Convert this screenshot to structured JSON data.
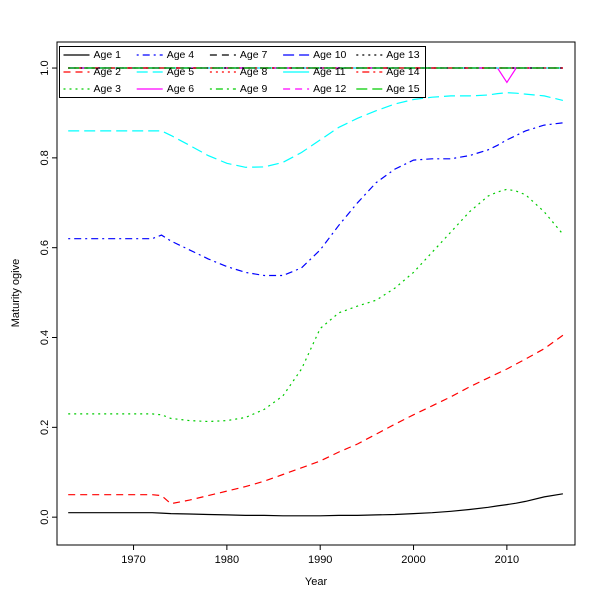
{
  "chart_data": {
    "type": "line",
    "title": "",
    "xlabel": "Year",
    "ylabel": "Maturity ogive",
    "xlim": [
      1961.8,
      2017.3
    ],
    "ylim": [
      -0.062,
      1.058
    ],
    "xticks": [
      1970,
      1980,
      1990,
      2000,
      2010
    ],
    "yticks": [
      0.0,
      0.2,
      0.4,
      0.6,
      0.8,
      1.0
    ],
    "grid": false,
    "legend": {
      "position": "top-left",
      "columns": 5,
      "rows": 3,
      "fill": "column-major"
    },
    "x": [
      1963,
      1966,
      1969,
      1972,
      1973,
      1974,
      1976,
      1978,
      1980,
      1982,
      1984,
      1986,
      1988,
      1990,
      1992,
      1994,
      1996,
      1998,
      2000,
      2002,
      2004,
      2006,
      2008,
      2009,
      2010,
      2011,
      2012,
      2014,
      2016
    ],
    "series": [
      {
        "name": "Age 1",
        "color": "#000000",
        "linetype": "solid",
        "values": [
          0.01,
          0.01,
          0.01,
          0.01,
          0.009,
          0.008,
          0.007,
          0.006,
          0.005,
          0.004,
          0.004,
          0.003,
          0.003,
          0.003,
          0.004,
          0.004,
          0.005,
          0.006,
          0.008,
          0.01,
          0.013,
          0.017,
          0.022,
          0.025,
          0.028,
          0.031,
          0.035,
          0.045,
          0.052
        ]
      },
      {
        "name": "Age 2",
        "color": "#ff0000",
        "linetype": "dashed",
        "values": [
          0.05,
          0.05,
          0.05,
          0.05,
          0.048,
          0.03,
          0.038,
          0.048,
          0.058,
          0.068,
          0.08,
          0.095,
          0.11,
          0.125,
          0.145,
          0.163,
          0.185,
          0.207,
          0.228,
          0.248,
          0.268,
          0.29,
          0.31,
          0.32,
          0.33,
          0.341,
          0.352,
          0.375,
          0.405
        ]
      },
      {
        "name": "Age 3",
        "color": "#00cc00",
        "linetype": "dotted",
        "values": [
          0.23,
          0.23,
          0.23,
          0.23,
          0.228,
          0.22,
          0.215,
          0.213,
          0.215,
          0.222,
          0.24,
          0.27,
          0.33,
          0.42,
          0.455,
          0.47,
          0.483,
          0.51,
          0.545,
          0.59,
          0.635,
          0.68,
          0.715,
          0.724,
          0.73,
          0.726,
          0.718,
          0.68,
          0.63
        ]
      },
      {
        "name": "Age 4",
        "color": "#0000ff",
        "linetype": "dotdash",
        "values": [
          0.62,
          0.62,
          0.62,
          0.62,
          0.628,
          0.615,
          0.595,
          0.575,
          0.558,
          0.545,
          0.538,
          0.538,
          0.555,
          0.595,
          0.65,
          0.7,
          0.745,
          0.775,
          0.795,
          0.798,
          0.798,
          0.805,
          0.818,
          0.828,
          0.84,
          0.85,
          0.86,
          0.873,
          0.878
        ]
      },
      {
        "name": "Age 5",
        "color": "#00ffff",
        "linetype": "longdash",
        "values": [
          0.86,
          0.86,
          0.86,
          0.86,
          0.86,
          0.85,
          0.828,
          0.805,
          0.788,
          0.779,
          0.78,
          0.79,
          0.812,
          0.84,
          0.868,
          0.888,
          0.905,
          0.92,
          0.93,
          0.935,
          0.938,
          0.938,
          0.94,
          0.943,
          0.945,
          0.944,
          0.942,
          0.938,
          0.928
        ]
      },
      {
        "name": "Age 6",
        "color": "#ff00ff",
        "linetype": "solid",
        "values": [
          1,
          1,
          1,
          1,
          1,
          1,
          1,
          1,
          1,
          1,
          1,
          1,
          1,
          1,
          1,
          1,
          1,
          1,
          1,
          1,
          1,
          1,
          1,
          1,
          0.968,
          1,
          1,
          1,
          1
        ]
      },
      {
        "name": "Age 7",
        "color": "#000000",
        "linetype": "dashed",
        "values": [
          1,
          1,
          1,
          1,
          1,
          1,
          1,
          1,
          1,
          1,
          1,
          1,
          1,
          1,
          1,
          1,
          1,
          1,
          1,
          1,
          1,
          1,
          1,
          1,
          1,
          1,
          1,
          1,
          1
        ]
      },
      {
        "name": "Age 8",
        "color": "#ff0000",
        "linetype": "dotted",
        "values": [
          1,
          1,
          1,
          1,
          1,
          1,
          1,
          1,
          1,
          1,
          1,
          1,
          1,
          1,
          1,
          1,
          1,
          1,
          1,
          1,
          1,
          1,
          1,
          1,
          1,
          1,
          1,
          1,
          1
        ]
      },
      {
        "name": "Age 9",
        "color": "#00cc00",
        "linetype": "dotdash",
        "values": [
          1,
          1,
          1,
          1,
          1,
          1,
          1,
          1,
          1,
          1,
          1,
          1,
          1,
          1,
          1,
          1,
          1,
          1,
          1,
          1,
          1,
          1,
          1,
          1,
          1,
          1,
          1,
          1,
          1
        ]
      },
      {
        "name": "Age 10",
        "color": "#0000ff",
        "linetype": "longdash",
        "values": [
          1,
          1,
          1,
          1,
          1,
          1,
          1,
          1,
          1,
          1,
          1,
          1,
          1,
          1,
          1,
          1,
          1,
          1,
          1,
          1,
          1,
          1,
          1,
          1,
          1,
          1,
          1,
          1,
          1
        ]
      },
      {
        "name": "Age 11",
        "color": "#00ffff",
        "linetype": "solid",
        "values": [
          1,
          1,
          1,
          1,
          1,
          1,
          1,
          1,
          1,
          1,
          1,
          1,
          1,
          1,
          1,
          1,
          1,
          1,
          1,
          1,
          1,
          1,
          1,
          1,
          1,
          1,
          1,
          1,
          1
        ]
      },
      {
        "name": "Age 12",
        "color": "#ff00ff",
        "linetype": "dashed",
        "values": [
          1,
          1,
          1,
          1,
          1,
          1,
          1,
          1,
          1,
          1,
          1,
          1,
          1,
          1,
          1,
          1,
          1,
          1,
          1,
          1,
          1,
          1,
          1,
          1,
          1,
          1,
          1,
          1,
          1
        ]
      },
      {
        "name": "Age 13",
        "color": "#000000",
        "linetype": "dotted",
        "values": [
          1,
          1,
          1,
          1,
          1,
          1,
          1,
          1,
          1,
          1,
          1,
          1,
          1,
          1,
          1,
          1,
          1,
          1,
          1,
          1,
          1,
          1,
          1,
          1,
          1,
          1,
          1,
          1,
          1
        ]
      },
      {
        "name": "Age 14",
        "color": "#ff0000",
        "linetype": "dotdash",
        "values": [
          1,
          1,
          1,
          1,
          1,
          1,
          1,
          1,
          1,
          1,
          1,
          1,
          1,
          1,
          1,
          1,
          1,
          1,
          1,
          1,
          1,
          1,
          1,
          1,
          1,
          1,
          1,
          1,
          1
        ]
      },
      {
        "name": "Age 15",
        "color": "#00cc00",
        "linetype": "longdash",
        "values": [
          1,
          1,
          1,
          1,
          1,
          1,
          1,
          1,
          1,
          1,
          1,
          1,
          1,
          1,
          1,
          1,
          1,
          1,
          1,
          1,
          1,
          1,
          1,
          1,
          1,
          1,
          1,
          1,
          1
        ]
      }
    ]
  }
}
